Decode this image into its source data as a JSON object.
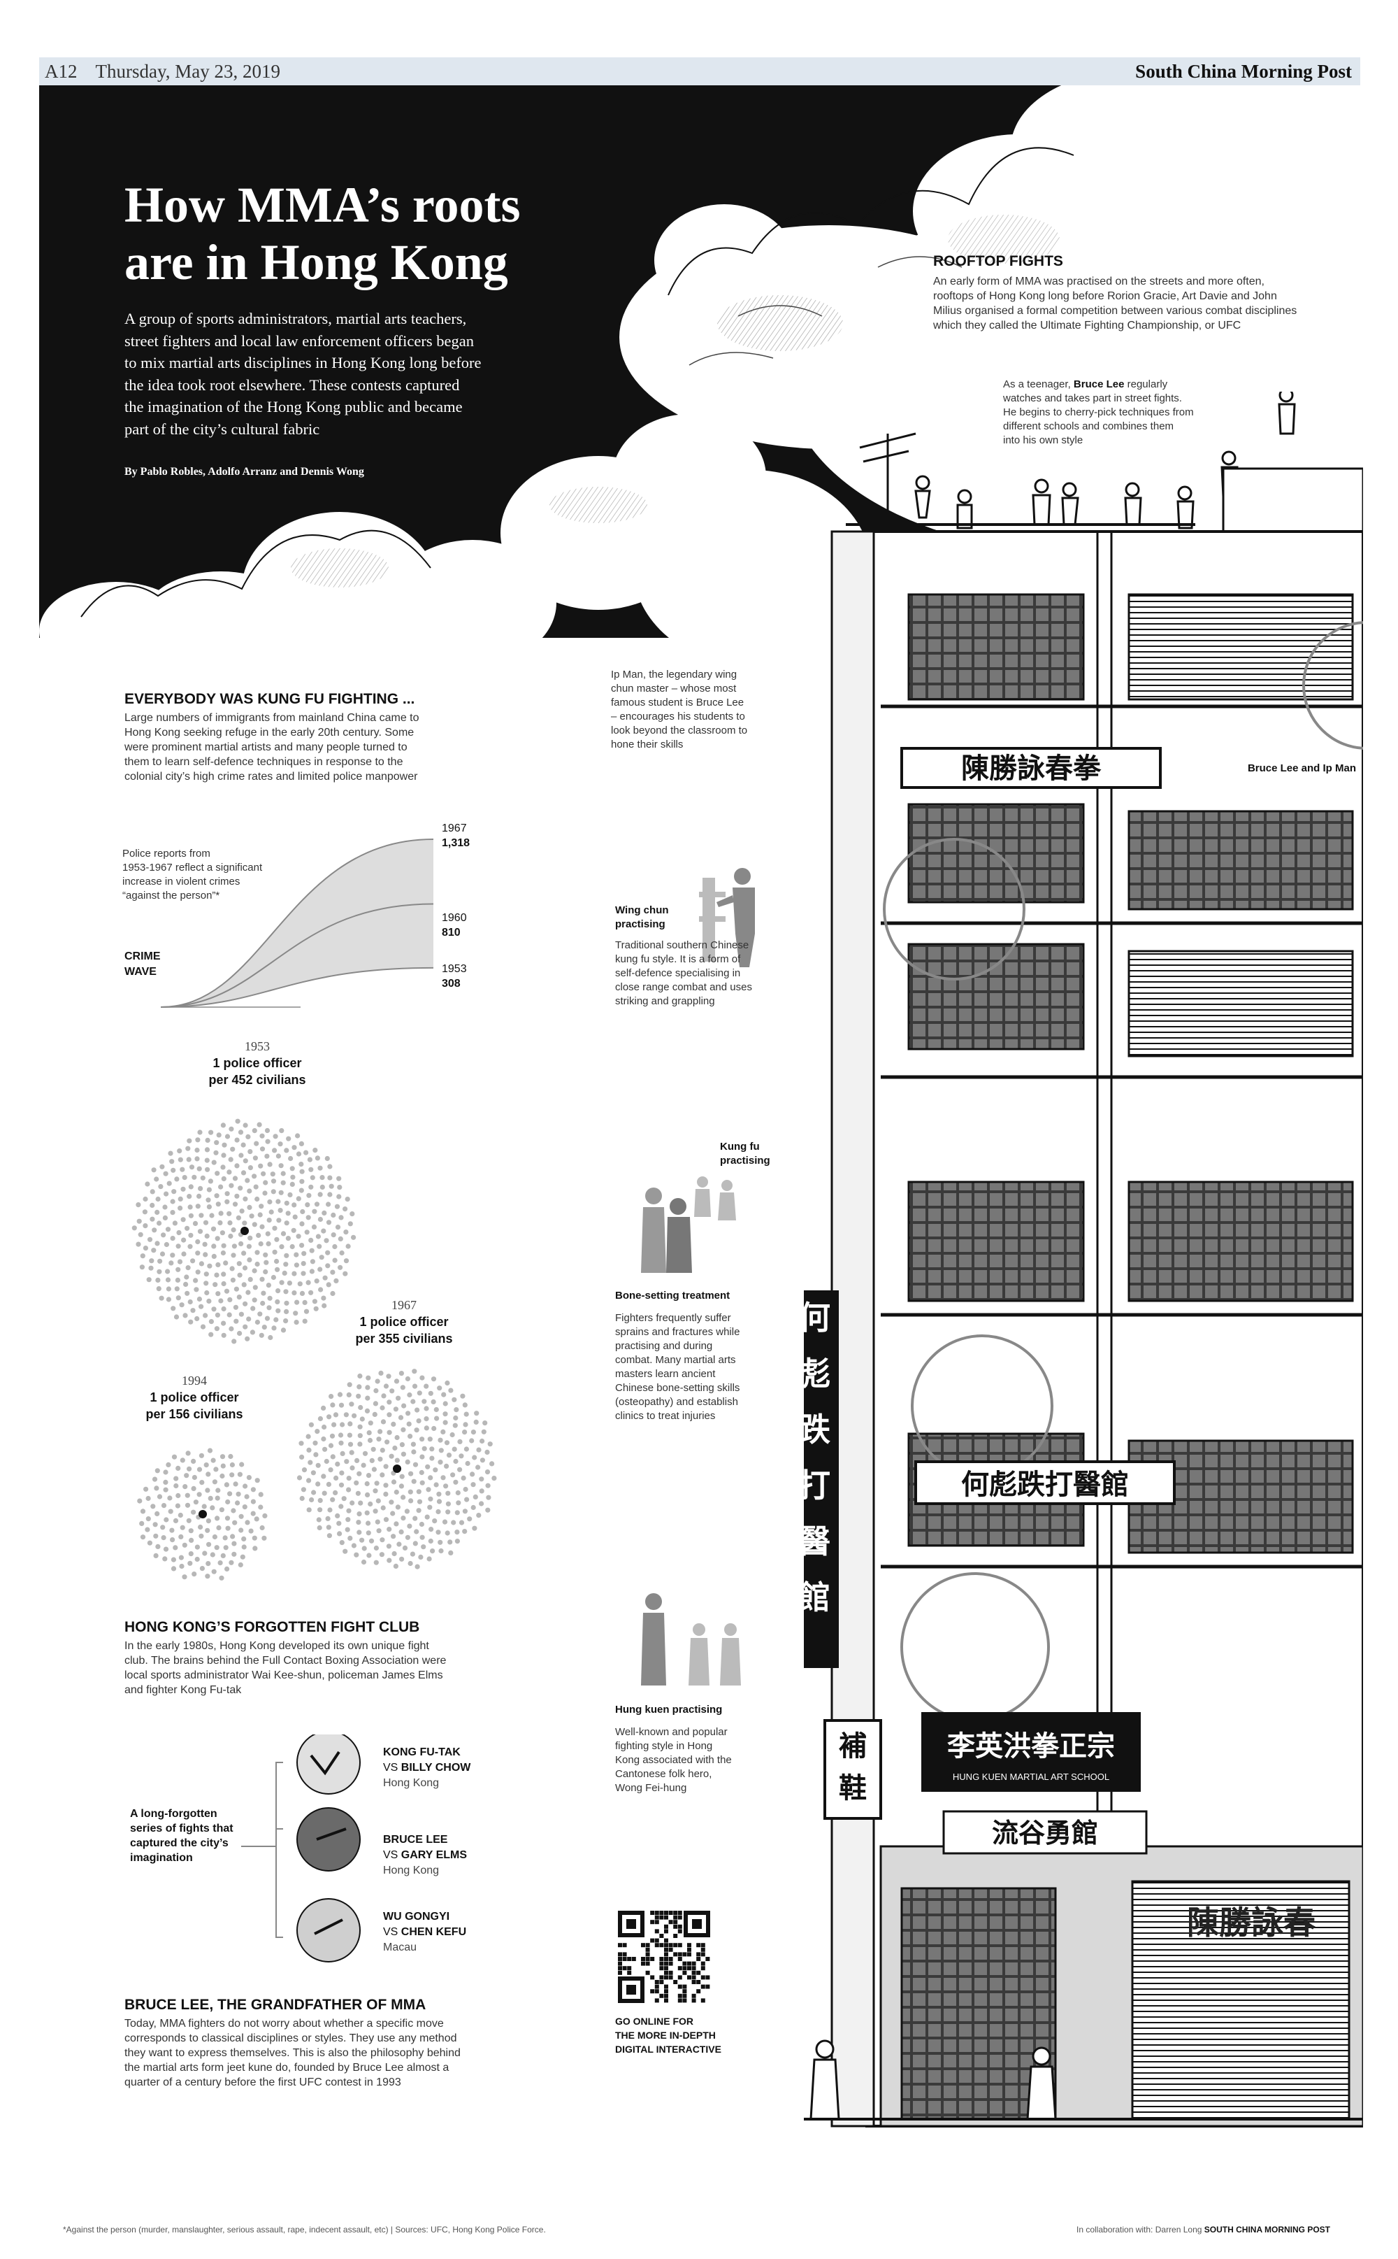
{
  "header": {
    "page": "A12",
    "date": "Thursday, May 23, 2019",
    "masthead": "South China Morning Post"
  },
  "hero": {
    "title_line1": "How MMA’s roots",
    "title_line2": "are in Hong Kong",
    "intro_lines": [
      "A group of sports administrators, martial arts teachers,",
      "street fighters and local law enforcement officers began",
      "to mix martial arts disciplines in Hong Kong long before",
      "the idea took root elsewhere. These contests captured",
      "the imagination of the Hong Kong public and became",
      "part of the city’s cultural fabric"
    ],
    "byline": "By Pablo Robles, Adolfo Arranz and Dennis Wong"
  },
  "rooftop": {
    "heading": "ROOFTOP FIGHTS",
    "body_lines": [
      "An early form of MMA was practised on the streets and more often,",
      "rooftops of Hong Kong long before Rorion Gracie, Art Davie and John",
      "Milius organised a formal competition between various combat disciplines",
      "which they called the Ultimate Fighting Championship, or UFC"
    ],
    "bruce_lines": [
      "As a teenager, ",
      "Bruce Lee",
      " regularly",
      "watches and takes part in street fights.",
      "He begins to cherry-pick techniques from",
      "different schools and combines them",
      "into his own style"
    ]
  },
  "ipman": {
    "lines": [
      "Ip Man, the legendary wing",
      "chun master – whose most",
      "famous student is Bruce Lee",
      "– encourages his students to",
      "look beyond the classroom to",
      "hone their skills"
    ],
    "label": "Bruce Lee and Ip Man"
  },
  "kungfu_section": {
    "heading": "EVERYBODY WAS KUNG FU FIGHTING ...",
    "body_lines": [
      "Large numbers of immigrants from mainland China came to",
      "Hong Kong seeking refuge in the early 20th century. Some",
      "were prominent martial artists and many people turned to",
      "them to learn self-defence techniques in response to the",
      "colonial city’s high crime rates and limited police manpower"
    ]
  },
  "crime_chart": {
    "note_lines": [
      "Police reports from",
      "1953-1967 reflect a significant",
      "increase in violent crimes",
      "“against the person”*"
    ],
    "label_lines": [
      "CRIME",
      "WAVE"
    ]
  },
  "chart_data": {
    "type": "line",
    "title": "CRIME WAVE",
    "series": [
      {
        "year": "1953",
        "value": 308
      },
      {
        "year": "1960",
        "value": 810
      },
      {
        "year": "1967",
        "value": 1318
      }
    ],
    "labels": [
      {
        "year": "1967",
        "value": "1,318"
      },
      {
        "year": "1960",
        "value": "810"
      },
      {
        "year": "1953",
        "value": "308"
      }
    ]
  },
  "police": [
    {
      "year": "1953",
      "line1": "1 police officer",
      "line2": "per 452 civilians"
    },
    {
      "year": "1967",
      "line1": "1 police officer",
      "line2": "per 355 civilians"
    },
    {
      "year": "1994",
      "line1": "1 police officer",
      "line2": "per 156 civilians"
    }
  ],
  "wingchun": {
    "heading_lines": [
      "Wing chun",
      "practising"
    ],
    "body_lines": [
      "Traditional southern Chinese",
      "kung fu style. It is a form of",
      "self-defence specialising in",
      "close range combat and uses",
      "striking  and grappling"
    ]
  },
  "kungfu_practising": {
    "lines": [
      "Kung fu",
      "practising"
    ]
  },
  "bonesetting": {
    "heading": "Bone-setting treatment",
    "body_lines": [
      "Fighters frequently suffer",
      "sprains and fractures while",
      "practising and during",
      "combat. Many martial arts",
      "masters learn ancient",
      "Chinese bone-setting skills",
      "(osteopathy) and establish",
      "clinics to treat injuries"
    ]
  },
  "hungkuen": {
    "heading": "Hung kuen practising",
    "body_lines": [
      "Well-known and popular",
      "fighting style in Hong",
      "Kong associated with the",
      "Cantonese folk hero,",
      "Wong Fei-hung"
    ]
  },
  "fightclub": {
    "heading": "HONG KONG’S FORGOTTEN FIGHT CLUB",
    "body_lines": [
      "In the early 1980s, Hong Kong developed its own unique fight",
      "club. The brains behind the Full Contact Boxing Association were",
      "local sports administrator Wai Kee-shun, policeman James Elms",
      "and fighter Kong Fu-tak"
    ],
    "series_label": [
      "A long-forgotten",
      "series of fights that",
      "captured the city’s",
      "imagination"
    ],
    "fights": [
      {
        "a": "KONG FU-TAK",
        "vs": "VS",
        "b": "BILLY CHOW",
        "place": "Hong Kong"
      },
      {
        "a": "BRUCE LEE",
        "vs": "VS",
        "b": "GARY ELMS",
        "place": "Hong Kong"
      },
      {
        "a": "WU GONGYI",
        "vs": "VS",
        "b": "CHEN KEFU",
        "place": "Macau"
      }
    ]
  },
  "grandfather": {
    "heading": "BRUCE LEE, THE GRANDFATHER OF MMA",
    "body_lines": [
      "Today, MMA fighters do not worry about whether a specific move",
      "corresponds to classical disciplines or styles. They use any method",
      "they want to express themselves. This is also the philosophy behind",
      "the martial arts form jeet kune do, founded by Bruce Lee almost a",
      "quarter of a century before the first UFC contest in 1993"
    ]
  },
  "online": {
    "lines": [
      "GO ONLINE FOR",
      "THE MORE IN-DEPTH",
      "DIGITAL INTERACTIVE"
    ]
  },
  "signs": {
    "wingchun_sign": "陳勝詠春拳",
    "bonesetter_vertical": [
      "何",
      "彪",
      "跌",
      "打",
      "醫",
      "館"
    ],
    "bonesetter_horizontal": "何彪跌打醫館",
    "shoe_sign": [
      "補",
      "鞋"
    ],
    "hungkuen_sign": "李英洪拳正宗",
    "hungkuen_sub": "HUNG KUEN MARTIAL ART SCHOOL",
    "shop_sign": "陳勝詠春",
    "rooftop_sign": "流谷勇館"
  },
  "footer": {
    "note": "*Against the person (murder, manslaughter, serious assault, rape, indecent assault, etc) | Sources: UFC, Hong Kong Police Force.",
    "credit_prefix": "In collaboration with: Darren Long ",
    "credit_brand": "SOUTH CHINA MORNING POST"
  }
}
